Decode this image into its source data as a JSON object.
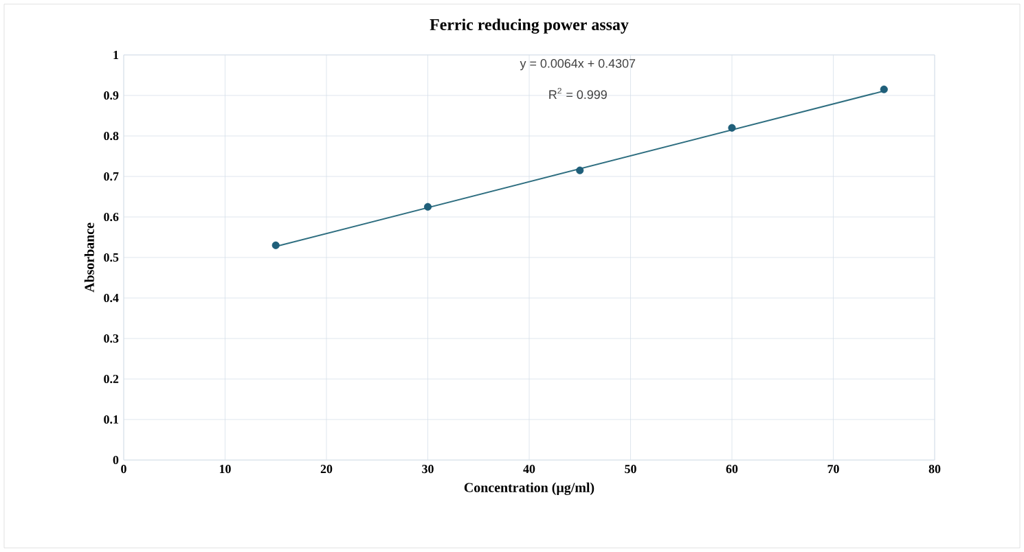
{
  "chart_data": {
    "type": "scatter",
    "title": "Ferric reducing power assay",
    "xlabel": "Concentration (µg/ml)",
    "ylabel": "Absorbance",
    "series": [
      {
        "color": "#1f5f7a",
        "x": [
          15,
          30,
          45,
          60,
          75
        ],
        "values": [
          0.53,
          0.625,
          0.715,
          0.82,
          0.915
        ]
      },
      {
        "type": "line",
        "color": "#2e6e80",
        "marker": "none",
        "x": [
          15,
          75
        ],
        "values": [
          0.527,
          0.911
        ]
      }
    ],
    "annotations": [
      "y = 0.0064x + 0.4307",
      "R$^{2}$ = 0.999"
    ],
    "xlim": [
      0,
      80
    ],
    "xticks": [
      0,
      10,
      20,
      30,
      40,
      50,
      60,
      70,
      80
    ],
    "ylim": [
      0,
      1
    ],
    "yticks": [
      0,
      0.1,
      0.2,
      0.3,
      0.4,
      0.5,
      0.6,
      0.7,
      0.8,
      0.9,
      1
    ],
    "grid": true,
    "marker": "circle",
    "line_style": "solid"
  }
}
